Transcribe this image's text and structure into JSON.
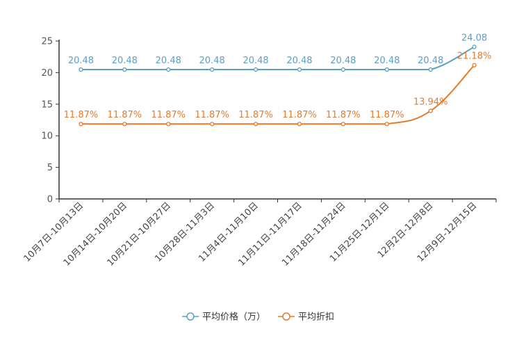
{
  "chart_data": {
    "type": "line",
    "categories": [
      "10月7日-10月13日",
      "10月14日-10月20日",
      "10月21日-10月27日",
      "10月28日-11月3日",
      "11月4日-11月10日",
      "11月11日-11月17日",
      "11月18日-11月24日",
      "11月25日-12月1日",
      "12月2日-12月8日",
      "12月9日-12月15日"
    ],
    "series": [
      {
        "name": "平均价格（万）",
        "color": "#5aa0c4",
        "values": [
          20.48,
          20.48,
          20.48,
          20.48,
          20.48,
          20.48,
          20.48,
          20.48,
          20.48,
          24.08
        ],
        "labels": [
          "20.48",
          "20.48",
          "20.48",
          "20.48",
          "20.48",
          "20.48",
          "20.48",
          "20.48",
          "20.48",
          "24.08"
        ]
      },
      {
        "name": "平均折扣",
        "color": "#e57a2c",
        "values": [
          11.87,
          11.87,
          11.87,
          11.87,
          11.87,
          11.87,
          11.87,
          11.87,
          13.94,
          21.18
        ],
        "labels": [
          "11.87%",
          "11.87%",
          "11.87%",
          "11.87%",
          "11.87%",
          "11.87%",
          "11.87%",
          "11.87%",
          "13.94%",
          "21.18%"
        ]
      }
    ],
    "y_ticks": [
      "0",
      "5",
      "10",
      "15",
      "20",
      "25"
    ],
    "ylim": [
      0,
      25
    ],
    "title": "",
    "xlabel": "",
    "ylabel": "",
    "legend_position": "bottom-center"
  }
}
